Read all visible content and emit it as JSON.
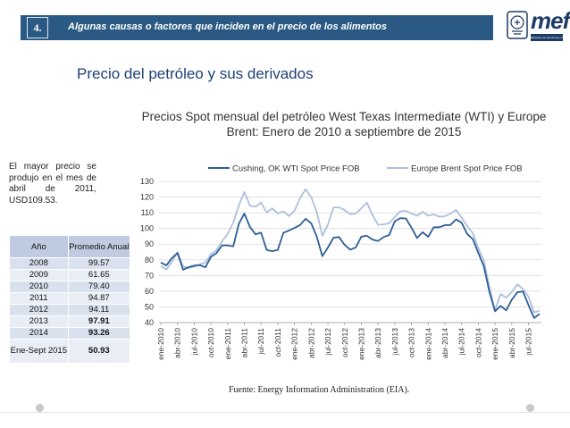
{
  "header": {
    "slide_number": "4.",
    "title": "Algunas causas o factores  que inciden en el precio de los alimentos",
    "logo_text": "mef",
    "logo_subtext": "Ministerio de Economía y Finanzas"
  },
  "subtitle": "Precio del petróleo y sus derivados",
  "note": "El mayor precio se produjo en el mes de abril de 2011, USD109.53.",
  "table": {
    "headers": [
      "Año",
      "Promedio Anual"
    ],
    "rows": [
      {
        "year": "2008",
        "value": "99.57"
      },
      {
        "year": "2009",
        "value": "61.65"
      },
      {
        "year": "2010",
        "value": "79.40"
      },
      {
        "year": "2011",
        "value": "94.87"
      },
      {
        "year": "2012",
        "value": "94.11"
      },
      {
        "year": "2013",
        "value": "97.91"
      },
      {
        "year": "2014",
        "value": "93.26"
      },
      {
        "year": "Ene-Sept 2015",
        "value": "50.93"
      }
    ]
  },
  "source": "Fuente: Energy  Information  Administration (EIA).",
  "colors": {
    "header_blue": "#2a5a84",
    "wti": "#2e5e96",
    "brent": "#aebfdc",
    "subtitle": "#1f3f75"
  },
  "chart_data": {
    "type": "line",
    "title": "Precios Spot mensual del petróleo West Texas Intermediate (WTI) y Europe Brent: Enero de 2010 a septiembre de 2015",
    "ylim": [
      40,
      130
    ],
    "yticks": [
      "40",
      "50",
      "60",
      "70",
      "80",
      "90",
      "100",
      "110",
      "120",
      "130"
    ],
    "legend_position": "top",
    "xtick_labels": [
      "ene-2010",
      "abr-2010",
      "jul-2010",
      "oct-2010",
      "ene-2011",
      "abr-2011",
      "jul-2011",
      "oct-2011",
      "ene-2012",
      "abr-2012",
      "jul-2012",
      "oct-2012",
      "ene-2013",
      "abr-2013",
      "jul-2013",
      "oct-2013",
      "ene-2014",
      "abr-2014",
      "jul-2014",
      "oct-2014",
      "ene-2015",
      "abr-2015",
      "jul-2015"
    ],
    "series": [
      {
        "name": "Cushing, OK WTI Spot Price FOB",
        "values": [
          78.3,
          76.4,
          81.2,
          84.3,
          73.7,
          75.3,
          76.3,
          76.6,
          75.2,
          81.9,
          84.3,
          89.2,
          89.2,
          88.6,
          102.9,
          109.5,
          100.9,
          96.3,
          97.3,
          86.3,
          85.5,
          86.3,
          97.2,
          98.6,
          100.3,
          102.2,
          106.2,
          103.3,
          94.7,
          82.3,
          87.9,
          94.1,
          94.5,
          89.5,
          86.5,
          87.9,
          94.8,
          95.3,
          92.9,
          92.0,
          94.5,
          95.8,
          104.6,
          106.6,
          106.3,
          100.5,
          93.9,
          97.6,
          94.6,
          100.8,
          100.8,
          102.1,
          102.2,
          105.8,
          103.6,
          96.5,
          93.2,
          84.4,
          75.8,
          59.3,
          47.2,
          50.6,
          47.8,
          54.5,
          59.3,
          59.8,
          51.2,
          42.9,
          45.5
        ]
      },
      {
        "name": "Europe Brent Spot Price FOB",
        "values": [
          76.2,
          73.8,
          78.8,
          84.9,
          75.9,
          74.8,
          75.6,
          77.1,
          78.2,
          83.5,
          86.2,
          91.8,
          96.5,
          103.7,
          114.6,
          123.3,
          114.5,
          113.8,
          116.5,
          110.1,
          112.8,
          109.6,
          110.8,
          107.9,
          111.2,
          119.3,
          125.0,
          119.8,
          110.3,
          95.2,
          102.6,
          113.4,
          113.4,
          111.7,
          109.1,
          109.5,
          112.9,
          116.5,
          108.5,
          102.3,
          102.6,
          103.3,
          107.4,
          110.9,
          111.2,
          109.5,
          108.1,
          110.6,
          108.1,
          108.9,
          107.5,
          107.8,
          109.5,
          111.8,
          106.8,
          101.6,
          97.1,
          87.4,
          79.4,
          62.3,
          47.8,
          58.1,
          55.9,
          59.5,
          64.3,
          61.5,
          56.6,
          46.5,
          47.6
        ]
      }
    ]
  }
}
